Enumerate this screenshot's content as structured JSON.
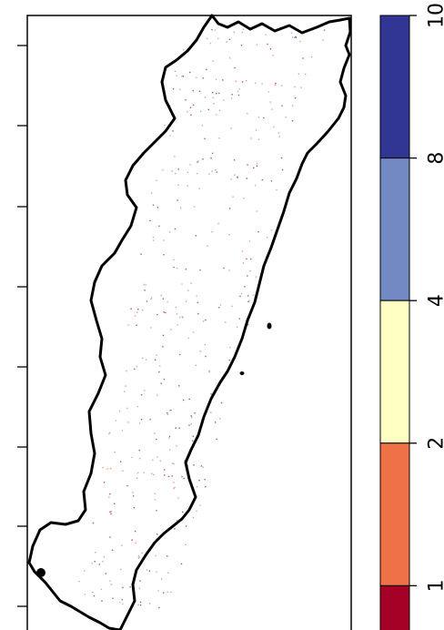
{
  "map": {
    "outline_color": "#000000",
    "background": "#ffffff",
    "speckle_colors": [
      "#a50026",
      "#f46d43",
      "#7b8fc6",
      "#313695",
      "#999999"
    ]
  },
  "legend": {
    "breaks": [
      {
        "label": "10",
        "value": 10
      },
      {
        "label": "8",
        "value": 8
      },
      {
        "label": "4",
        "value": 4
      },
      {
        "label": "2",
        "value": 2
      },
      {
        "label": "1",
        "value": 1
      }
    ],
    "bins": [
      {
        "from": 8,
        "to": 10,
        "color": "#313695"
      },
      {
        "from": 4,
        "to": 8,
        "color": "#7289c4"
      },
      {
        "from": 2,
        "to": 4,
        "color": "#ffffc4"
      },
      {
        "from": 1,
        "to": 2,
        "color": "#ef7247"
      },
      {
        "from": 0,
        "to": 1,
        "color": "#a50026"
      }
    ]
  }
}
